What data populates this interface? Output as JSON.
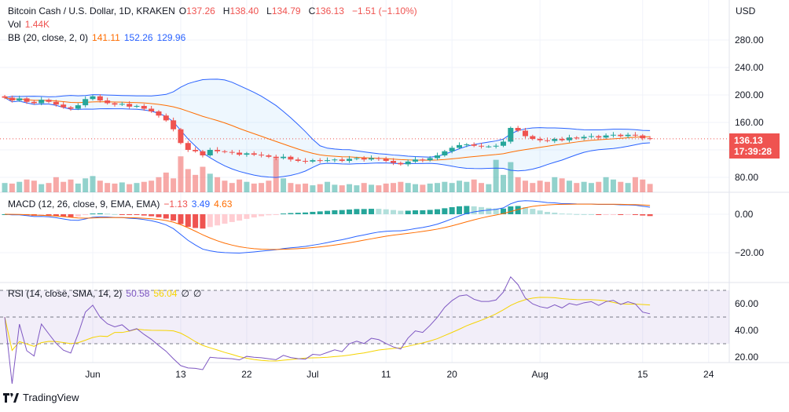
{
  "header": {
    "symbol": "Bitcoin Cash / U.S. Dollar, 1D, KRAKEN",
    "o_label": "O",
    "open": "137.26",
    "h_label": "H",
    "high": "138.40",
    "l_label": "L",
    "low": "134.79",
    "c_label": "C",
    "close": "136.13",
    "change": "−1.51 (−1.10%)"
  },
  "volume_legend": {
    "label": "Vol",
    "value": "1.44K"
  },
  "bb_legend": {
    "label": "BB (20, close, 2, 0)",
    "basis": "141.11",
    "upper": "152.26",
    "lower": "129.96"
  },
  "macd_legend": {
    "label": "MACD (12, 26, close, 9, EMA, EMA)",
    "hist": "−1.13",
    "macd": "3.49",
    "signal": "4.63"
  },
  "rsi_legend": {
    "label": "RSI (14, close, SMA, 14, 2)",
    "rsi": "50.58",
    "sma": "56.04",
    "v1": "∅",
    "v2": "∅"
  },
  "price_axis": {
    "currency": "USD",
    "ticks": [
      "280.00",
      "240.00",
      "200.00",
      "160.00",
      "80.00"
    ],
    "last_price": "136.13",
    "countdown": "17:39:28"
  },
  "macd_axis": {
    "ticks": [
      "0.00",
      "−20.00"
    ]
  },
  "rsi_axis": {
    "ticks": [
      "60.00",
      "40.00",
      "20.00"
    ]
  },
  "time_axis": {
    "labels": [
      "Jun",
      "13",
      "22",
      "Jul",
      "11",
      "20",
      "Aug",
      "15",
      "24"
    ]
  },
  "brand": "TradingView",
  "colors": {
    "up": "#26a69a",
    "down": "#ef5350",
    "bb_band": "#2962ff",
    "bb_basis": "#ff6d00",
    "rsi": "#7e57c2",
    "rsi_sma": "#f5d300"
  },
  "chart_data": {
    "type": "candlestick",
    "start_date": "May 20",
    "closes": [
      196,
      192,
      195,
      190,
      188,
      193,
      190,
      186,
      182,
      180,
      185,
      194,
      198,
      192,
      188,
      186,
      187,
      183,
      184,
      180,
      176,
      170,
      163,
      150,
      130,
      120,
      118,
      112,
      120,
      118,
      117,
      116,
      113,
      115,
      113,
      112,
      110,
      108,
      110,
      106,
      104,
      103,
      105,
      104,
      105,
      106,
      104,
      107,
      108,
      106,
      108,
      107,
      104,
      101,
      99,
      103,
      106,
      105,
      108,
      112,
      118,
      123,
      127,
      128,
      126,
      125,
      125,
      126,
      132,
      152,
      148,
      140,
      136,
      134,
      133,
      136,
      134,
      138,
      137,
      139,
      140,
      138,
      141,
      142,
      140,
      142,
      141,
      137,
      136.13
    ],
    "volumes_k": [
      1.6,
      1.5,
      1.8,
      2.2,
      2.0,
      1.4,
      1.6,
      2.6,
      1.8,
      2.2,
      1.5,
      2.4,
      2.8,
      2.0,
      1.6,
      1.5,
      1.7,
      1.4,
      1.6,
      1.8,
      2.0,
      2.6,
      3.4,
      2.4,
      6.2,
      4.0,
      3.0,
      4.4,
      3.2,
      2.6,
      2.0,
      1.6,
      2.2,
      1.8,
      1.5,
      1.6,
      2.0,
      5.8,
      2.4,
      1.6,
      1.4,
      1.5,
      1.2,
      1.4,
      1.8,
      1.3,
      1.2,
      1.4,
      1.2,
      1.6,
      1.3,
      1.2,
      1.5,
      1.6,
      1.8,
      1.6,
      1.4,
      1.3,
      1.5,
      1.6,
      1.8,
      1.6,
      2.0,
      1.8,
      2.2,
      1.6,
      1.4,
      5.6,
      3.0,
      5.2,
      2.6,
      2.0,
      1.6,
      2.0,
      1.8,
      2.6,
      2.4,
      2.0,
      1.6,
      1.8,
      1.6,
      1.8,
      2.6,
      2.2,
      1.8,
      1.6,
      2.6,
      2.2,
      1.44
    ]
  }
}
